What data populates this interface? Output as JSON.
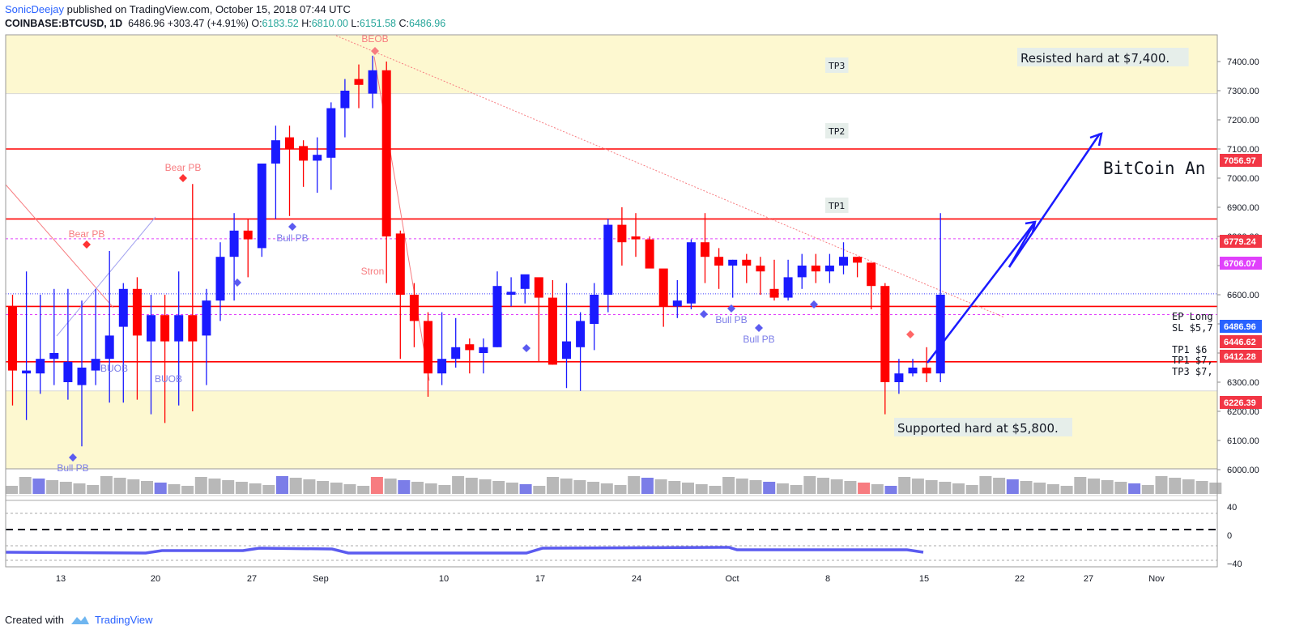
{
  "header": {
    "author": "SonicDeejay",
    "published": "published on TradingView.com, October 15, 2018 07:44 UTC",
    "symbol": "COINBASE:BTCUSD, 1D",
    "last": "6486.96",
    "change": "+303.47 (+4.91%)",
    "o_label": "O:",
    "o": "6183.52",
    "h_label": "H:",
    "h": "6810.00",
    "l_label": "L:",
    "l": "6151.58",
    "c_label": "C:",
    "c": "6486.96"
  },
  "footer": {
    "created_with": "Created with",
    "brand": "TradingView"
  },
  "chart_data": {
    "type": "candlestick",
    "ylim": [
      6000,
      7400
    ],
    "y_ticks": [
      "7400.00",
      "7300.00",
      "7200.00",
      "7100.00",
      "7000.00",
      "6900.00",
      "6800.00",
      "6700.00",
      "6600.00",
      "6500.00",
      "6400.00",
      "6300.00",
      "6200.00",
      "6100.00",
      "6000.00"
    ],
    "x_ticks": [
      "13",
      "20",
      "27",
      "Sep",
      "10",
      "17",
      "24",
      "Oct",
      "8",
      "15",
      "22",
      "27",
      "Nov"
    ],
    "price_tags": [
      {
        "label": "7056.97",
        "color": "#f23645"
      },
      {
        "label": "6779.24",
        "color": "#f23645"
      },
      {
        "label": "6706.07",
        "color": "#e040fb"
      },
      {
        "label": "6486.96",
        "color": "#2962ff"
      },
      {
        "label": "6446.62",
        "color": "#f23645"
      },
      {
        "label": "6412.28",
        "color": "#f23645"
      },
      {
        "label": "6226.39",
        "color": "#f23645"
      }
    ],
    "annotations": {
      "resisted": "Resisted hard at $7,400.",
      "supported": "Supported hard at $5,800.",
      "bitcoin": "BitCoin An",
      "tp3": "TP3",
      "tp2": "TP2",
      "tp1": "TP1",
      "ep": "EP Long",
      "sl": "SL $5,7",
      "tp1b": "TP1 $6",
      "tp1c": "TP1 $7,",
      "tp3b": "TP3 $7,"
    },
    "markers": [
      {
        "text": "BEOB",
        "color": "#f77c80"
      },
      {
        "text": "Bear PB",
        "color": "#f77c80"
      },
      {
        "text": "Bear PB",
        "color": "#f77c80"
      },
      {
        "text": "Bull PB",
        "color": "#7b7de8"
      },
      {
        "text": "Bull PB",
        "color": "#7b7de8"
      },
      {
        "text": "Bull PB",
        "color": "#7b7de8"
      },
      {
        "text": "Bull PB",
        "color": "#7b7de8"
      },
      {
        "text": "BUOB",
        "color": "#7b7de8"
      },
      {
        "text": "BUOB",
        "color": "#7b7de8"
      },
      {
        "text": "Stron",
        "color": "#f77c80"
      }
    ],
    "osc_ticks": [
      "40",
      "0",
      "−40"
    ],
    "colors": {
      "up": "#1a1aff",
      "down": "#ff0000",
      "resistance": "#ff0000",
      "pivot": "#e040fb",
      "zone": "#fdf8d0"
    }
  }
}
